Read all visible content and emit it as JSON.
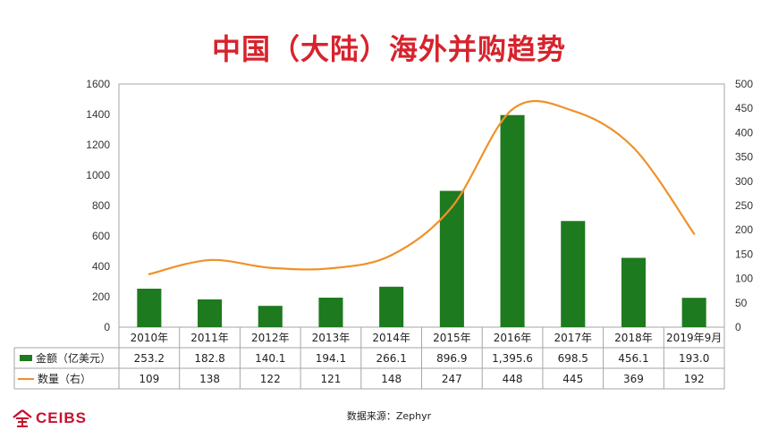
{
  "title": "中国（大陆）海外并购趋势",
  "source_text": "数据来源：Zephyr",
  "logo_text": "CEIBS",
  "colors": {
    "title": "#d7232d",
    "bar": "#1e7a1e",
    "line": "#f0912a",
    "logo": "#c8102e"
  },
  "chart_data": {
    "type": "bar",
    "categories": [
      "2010年",
      "2011年",
      "2012年",
      "2013年",
      "2014年",
      "2015年",
      "2016年",
      "2017年",
      "2018年",
      "2019年9月"
    ],
    "series": [
      {
        "name": "金额（亿美元）",
        "type": "bar",
        "axis": "left",
        "values": [
          253.2,
          182.8,
          140.1,
          194.1,
          266.1,
          896.9,
          1395.6,
          698.5,
          456.1,
          193.0
        ],
        "labels": [
          "253.2",
          "182.8",
          "140.1",
          "194.1",
          "266.1",
          "896.9",
          "1,395.6",
          "698.5",
          "456.1",
          "193.0"
        ]
      },
      {
        "name": "数量（右）",
        "type": "line",
        "axis": "right",
        "values": [
          109,
          138,
          122,
          121,
          148,
          247,
          448,
          445,
          369,
          192
        ],
        "labels": [
          "109",
          "138",
          "122",
          "121",
          "148",
          "247",
          "448",
          "445",
          "369",
          "192"
        ]
      }
    ],
    "y_left": {
      "range": [
        0,
        1600
      ],
      "ticks": [
        "0",
        "200",
        "400",
        "600",
        "800",
        "1000",
        "1200",
        "1400",
        "1600"
      ]
    },
    "y_right": {
      "range": [
        0,
        500
      ],
      "ticks": [
        "0",
        "50",
        "100",
        "150",
        "200",
        "250",
        "300",
        "350",
        "400",
        "450",
        "500"
      ]
    },
    "grid": false,
    "legend": "data-table"
  }
}
